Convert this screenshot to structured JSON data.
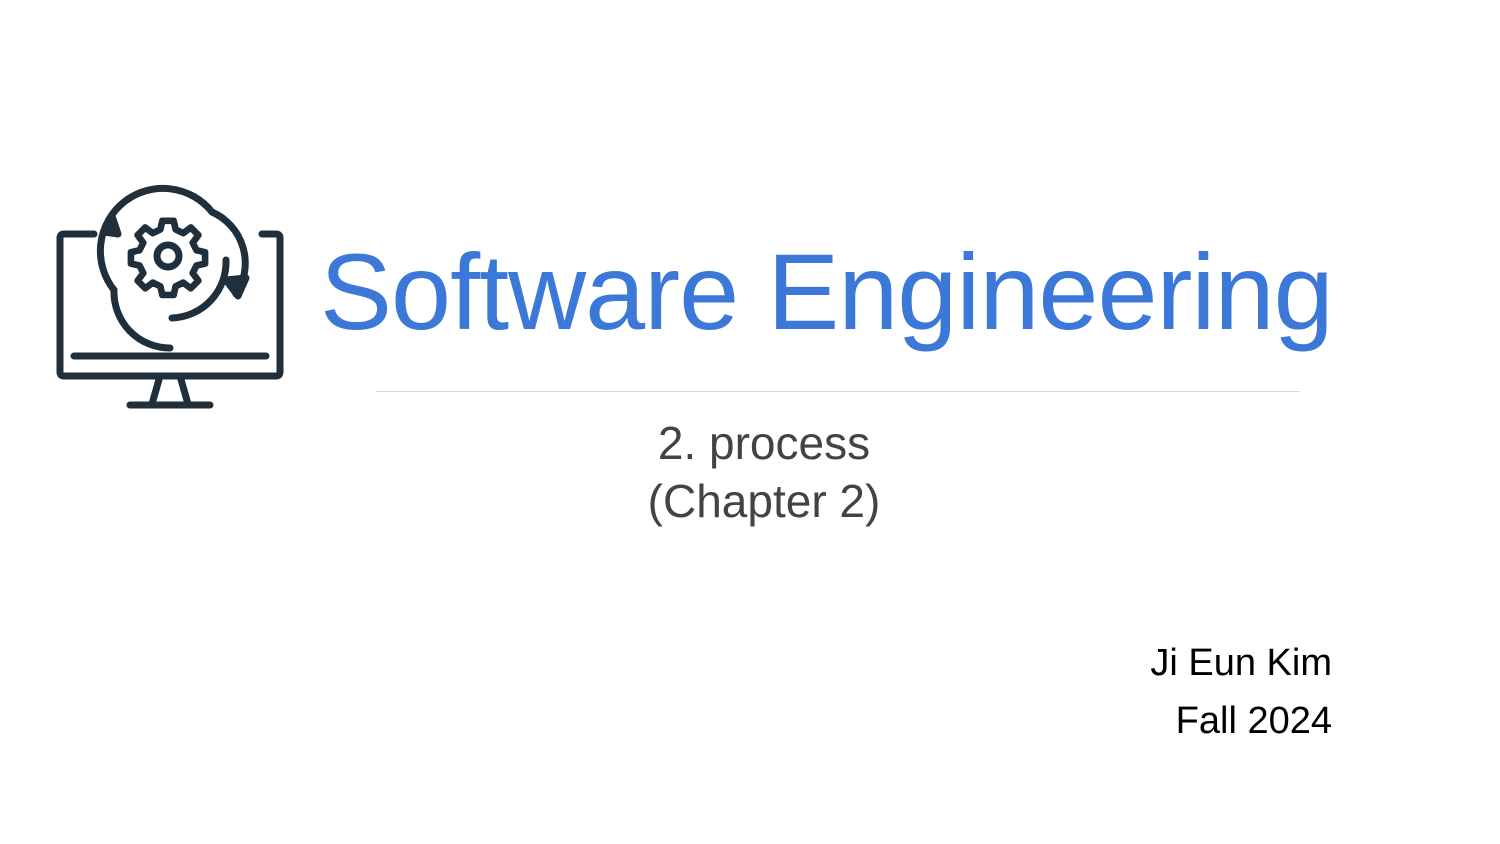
{
  "slide": {
    "title": "Software Engineering",
    "subtitle_line1": "2. process",
    "subtitle_line2": "(Chapter 2)",
    "author": "Ji Eun Kim",
    "term": "Fall 2024"
  },
  "logo": {
    "icon": "computer-gear-refresh-icon"
  },
  "colors": {
    "title": "#3c78d8",
    "subtitle": "#434343",
    "author": "#000000",
    "divider": "#d9d9d9",
    "icon": "#1f2f3b"
  }
}
